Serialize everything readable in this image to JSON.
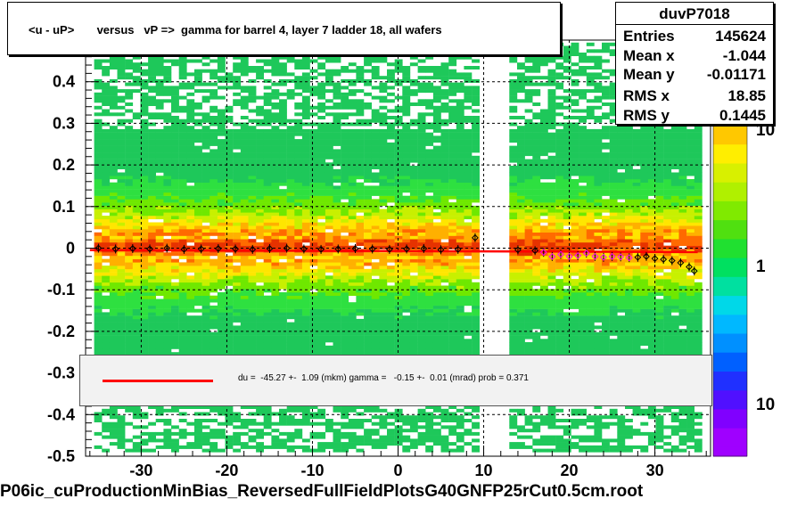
{
  "title": "<u - uP>       versus   vP =>  gamma for barrel 4, layer 7 ladder 18, all wafers",
  "stats": {
    "name": "duvP7018",
    "rows": [
      {
        "key": "Entries",
        "value": "145624"
      },
      {
        "key": "Mean x",
        "value": "-1.044"
      },
      {
        "key": "Mean y",
        "value": "-0.01171"
      },
      {
        "key": "RMS x",
        "value": "18.85"
      },
      {
        "key": "RMS y",
        "value": "0.1445"
      }
    ]
  },
  "fit": {
    "text": "du =  -45.27 +-  1.09 (mkm) gamma =   -0.15 +-  0.01 (mrad) prob = 0.371",
    "line_color": "#ff0000"
  },
  "footer": "P06ic_cuProductionMinBias_ReversedFullFieldPlotsG40GNFP25rCut0.5cm.root",
  "colors": {
    "fit_line": "#ff0000",
    "profile_points": "#000000",
    "profile_points_alt": "#ff00ff"
  },
  "chart_data": {
    "type": "heatmap",
    "xlim": [
      -36.5,
      36.5
    ],
    "ylim": [
      -0.5,
      0.5
    ],
    "grid": true,
    "x_ticks": [
      -30,
      -20,
      -10,
      0,
      10,
      20,
      30
    ],
    "y_ticks": [
      -0.5,
      -0.4,
      -0.3,
      -0.2,
      -0.1,
      0,
      0.1,
      0.2,
      0.3,
      0.4
    ],
    "y_tick_labels": [
      "-0.5",
      "-0.4",
      "-0.3",
      "-0.2",
      "-0.1",
      "0",
      "0.1",
      "0.2",
      "0.3",
      "0.4"
    ],
    "z_scale": "log",
    "z_tick_labels": [
      "10",
      "1",
      "10"
    ],
    "occupied_x_ranges": [
      [
        -35.5,
        9
      ],
      [
        13,
        35
      ]
    ],
    "fit_line": {
      "x": [
        -36,
        35
      ],
      "y": [
        -0.0045,
        -0.0095
      ]
    },
    "profile_points": {
      "x": [
        -35,
        -33,
        -31,
        -29,
        -27,
        -25,
        -23,
        -21,
        -19,
        -17,
        -15,
        -13,
        -11,
        -9,
        -7,
        -5,
        -3,
        -1,
        1,
        3,
        5,
        7,
        9,
        14,
        16,
        17,
        18,
        19,
        20,
        21,
        22,
        23,
        24,
        25,
        26,
        27,
        28,
        29,
        30,
        31,
        32,
        33,
        34,
        34.6
      ],
      "y": [
        0.0,
        -0.002,
        -0.001,
        -0.002,
        0.0,
        -0.003,
        -0.002,
        -0.001,
        -0.002,
        -0.003,
        -0.001,
        0.0,
        -0.002,
        -0.003,
        -0.002,
        -0.001,
        -0.002,
        -0.003,
        -0.002,
        -0.001,
        -0.004,
        -0.003,
        0.025,
        -0.004,
        -0.006,
        -0.01,
        -0.02,
        -0.015,
        -0.02,
        -0.018,
        -0.012,
        -0.02,
        -0.022,
        -0.02,
        -0.021,
        -0.023,
        -0.022,
        -0.02,
        -0.025,
        -0.027,
        -0.03,
        -0.035,
        -0.045,
        -0.055
      ]
    }
  }
}
